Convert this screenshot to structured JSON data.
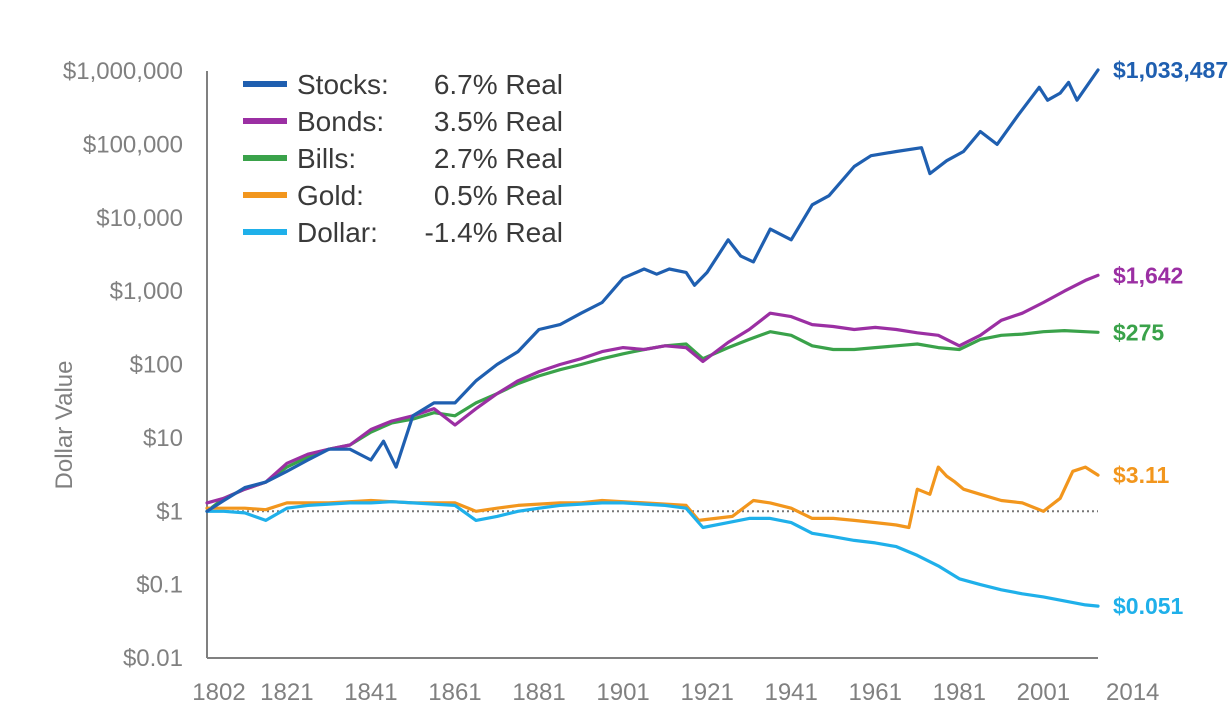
{
  "chart_data": {
    "type": "line",
    "title": "",
    "xlabel": "",
    "ylabel": "Dollar Value",
    "y_scale": "log",
    "ylim": [
      0.01,
      1000000
    ],
    "xlim": [
      1802,
      2014
    ],
    "grid": false,
    "reference_line": {
      "y": 1,
      "style": "dotted"
    },
    "legend_position": "top-left",
    "x_ticks": [
      "1802",
      "1821",
      "1841",
      "1861",
      "1881",
      "1901",
      "1921",
      "1941",
      "1961",
      "1981",
      "2001",
      "2014"
    ],
    "y_ticks": [
      {
        "value": 0.01,
        "label": "$0.01"
      },
      {
        "value": 0.1,
        "label": "$0.1"
      },
      {
        "value": 1,
        "label": "$1"
      },
      {
        "value": 10,
        "label": "$10"
      },
      {
        "value": 100,
        "label": "$100"
      },
      {
        "value": 1000,
        "label": "$1,000"
      },
      {
        "value": 10000,
        "label": "$10,000"
      },
      {
        "value": 100000,
        "label": "$100,000"
      },
      {
        "value": 1000000,
        "label": "$1,000,000"
      }
    ],
    "series": [
      {
        "name": "Stocks",
        "legend_rate": "6.7% Real",
        "end_label": "$1,033,487",
        "color": "#1f5fb0",
        "x": [
          1802,
          1806,
          1811,
          1816,
          1821,
          1826,
          1831,
          1836,
          1841,
          1844,
          1847,
          1851,
          1856,
          1861,
          1866,
          1871,
          1876,
          1881,
          1886,
          1891,
          1896,
          1901,
          1906,
          1909,
          1912,
          1916,
          1918,
          1921,
          1926,
          1929,
          1932,
          1936,
          1941,
          1946,
          1950,
          1956,
          1960,
          1966,
          1972,
          1974,
          1978,
          1982,
          1986,
          1990,
          1995,
          2000,
          2002,
          2005,
          2007,
          2009,
          2014
        ],
        "y": [
          1,
          1.4,
          2.1,
          2.5,
          3.5,
          5,
          7,
          7,
          5,
          9,
          4,
          20,
          30,
          30,
          60,
          100,
          150,
          300,
          350,
          500,
          700,
          1500,
          2000,
          1700,
          2000,
          1800,
          1200,
          1800,
          5000,
          3000,
          2500,
          7000,
          5000,
          15000,
          20000,
          50000,
          70000,
          80000,
          90000,
          40000,
          60000,
          80000,
          150000,
          100000,
          250000,
          600000,
          400000,
          500000,
          700000,
          400000,
          1033487
        ]
      },
      {
        "name": "Bonds",
        "legend_rate": "3.5% Real",
        "end_label": "$1,642",
        "color": "#9b2fa3",
        "x": [
          1802,
          1806,
          1811,
          1816,
          1821,
          1826,
          1831,
          1836,
          1841,
          1846,
          1851,
          1856,
          1861,
          1866,
          1871,
          1876,
          1881,
          1886,
          1891,
          1896,
          1901,
          1906,
          1911,
          1916,
          1920,
          1926,
          1931,
          1936,
          1941,
          1946,
          1951,
          1956,
          1961,
          1966,
          1971,
          1976,
          1981,
          1986,
          1991,
          1996,
          2001,
          2006,
          2011,
          2014
        ],
        "y": [
          1.3,
          1.5,
          2,
          2.5,
          4.5,
          6,
          7,
          8,
          13,
          17,
          20,
          25,
          15,
          25,
          40,
          60,
          80,
          100,
          120,
          150,
          170,
          160,
          180,
          170,
          110,
          200,
          300,
          500,
          450,
          350,
          330,
          300,
          320,
          300,
          270,
          250,
          180,
          250,
          400,
          500,
          700,
          1000,
          1400,
          1642
        ]
      },
      {
        "name": "Bills",
        "legend_rate": "2.7% Real",
        "end_label": "$275",
        "color": "#3aa24a",
        "x": [
          1802,
          1806,
          1811,
          1816,
          1821,
          1826,
          1831,
          1836,
          1841,
          1846,
          1851,
          1856,
          1861,
          1866,
          1871,
          1876,
          1881,
          1886,
          1891,
          1896,
          1901,
          1906,
          1911,
          1916,
          1920,
          1926,
          1931,
          1936,
          1941,
          1946,
          1951,
          1956,
          1961,
          1966,
          1971,
          1976,
          1981,
          1986,
          1991,
          1996,
          2001,
          2006,
          2011,
          2014
        ],
        "y": [
          1,
          1.5,
          2,
          2.5,
          4,
          5.5,
          7,
          8,
          12,
          16,
          18,
          22,
          20,
          30,
          40,
          55,
          70,
          85,
          100,
          120,
          140,
          160,
          180,
          190,
          120,
          170,
          220,
          280,
          250,
          180,
          160,
          160,
          170,
          180,
          190,
          170,
          160,
          220,
          250,
          260,
          280,
          290,
          280,
          275
        ]
      },
      {
        "name": "Gold",
        "legend_rate": "0.5% Real",
        "end_label": "$3.11",
        "color": "#f2961d",
        "x": [
          1802,
          1806,
          1811,
          1816,
          1821,
          1826,
          1831,
          1836,
          1841,
          1846,
          1851,
          1856,
          1861,
          1866,
          1871,
          1876,
          1881,
          1886,
          1891,
          1896,
          1901,
          1906,
          1911,
          1916,
          1919,
          1923,
          1927,
          1932,
          1936,
          1941,
          1946,
          1951,
          1956,
          1961,
          1966,
          1969,
          1971,
          1974,
          1976,
          1978,
          1980,
          1982,
          1986,
          1991,
          1996,
          2001,
          2005,
          2008,
          2011,
          2014
        ],
        "y": [
          1.1,
          1.1,
          1.1,
          1.05,
          1.3,
          1.3,
          1.3,
          1.35,
          1.4,
          1.35,
          1.3,
          1.3,
          1.3,
          1.0,
          1.1,
          1.2,
          1.25,
          1.3,
          1.3,
          1.4,
          1.35,
          1.3,
          1.25,
          1.2,
          0.75,
          0.8,
          0.85,
          1.4,
          1.3,
          1.1,
          0.8,
          0.8,
          0.75,
          0.7,
          0.65,
          0.6,
          2.0,
          1.7,
          4.0,
          3.0,
          2.5,
          2.0,
          1.7,
          1.4,
          1.3,
          1.0,
          1.5,
          3.5,
          4.0,
          3.11
        ]
      },
      {
        "name": "Dollar",
        "legend_rate": "-1.4% Real",
        "end_label": "$0.051",
        "color": "#1fb0ea",
        "x": [
          1802,
          1806,
          1811,
          1816,
          1821,
          1826,
          1831,
          1836,
          1841,
          1846,
          1851,
          1856,
          1861,
          1866,
          1871,
          1876,
          1881,
          1886,
          1891,
          1896,
          1901,
          1906,
          1911,
          1916,
          1920,
          1926,
          1931,
          1936,
          1941,
          1946,
          1951,
          1956,
          1961,
          1966,
          1971,
          1976,
          1981,
          1986,
          1991,
          1996,
          2001,
          2006,
          2011,
          2014
        ],
        "y": [
          1,
          1,
          0.95,
          0.75,
          1.1,
          1.2,
          1.25,
          1.3,
          1.3,
          1.35,
          1.3,
          1.25,
          1.2,
          0.75,
          0.85,
          1.0,
          1.1,
          1.2,
          1.25,
          1.3,
          1.3,
          1.25,
          1.2,
          1.1,
          0.6,
          0.7,
          0.8,
          0.8,
          0.7,
          0.5,
          0.45,
          0.4,
          0.37,
          0.33,
          0.25,
          0.18,
          0.12,
          0.1,
          0.085,
          0.075,
          0.068,
          0.06,
          0.053,
          0.051
        ]
      }
    ]
  },
  "colors": {
    "axis": "#808080",
    "reference_line": "#777777",
    "legend_text": "#3a3a3a"
  }
}
